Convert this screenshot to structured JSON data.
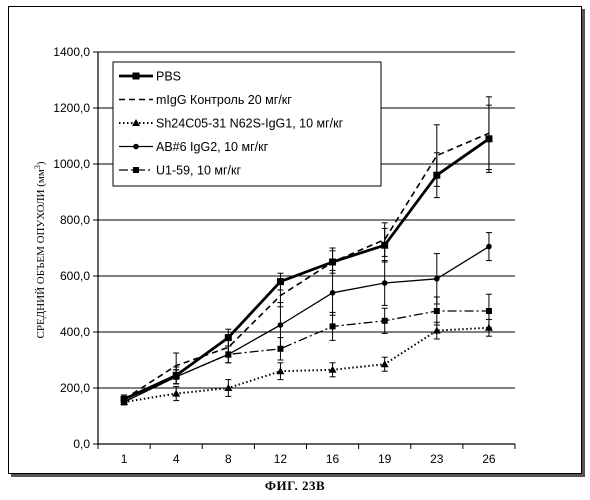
{
  "caption": "ФИГ. 23В",
  "chart_data": {
    "type": "line",
    "ylabel": "СРЕДНИЙ ОБЪЕМ ОПУХОЛИ (мм³)",
    "ylabel_main": "СРЕДНИЙ ОБЪЕМ ОПУХОЛИ (мм",
    "ylabel_sup": "3",
    "ylabel_tail": ")",
    "xlabel": "",
    "categories": [
      "1",
      "4",
      "8",
      "12",
      "16",
      "19",
      "23",
      "26"
    ],
    "ylim": [
      0,
      1400
    ],
    "yticks": [
      "0,0",
      "200,0",
      "400,0",
      "600,0",
      "800,0",
      "1000,0",
      "1200,0",
      "1400,0"
    ],
    "ytick_values": [
      0,
      200,
      400,
      600,
      800,
      1000,
      1200,
      1400
    ],
    "grid": "horizontal",
    "legend_position": "top-left",
    "series": [
      {
        "name": "PBS",
        "values": [
          160,
          245,
          380,
          580,
          650,
          710,
          960,
          1090
        ],
        "errors": [
          15,
          30,
          30,
          30,
          50,
          60,
          80,
          120
        ],
        "line_style": "solid-thick",
        "marker": "square"
      },
      {
        "name": "mIgG Контроль 20 мг/кг",
        "values": [
          160,
          280,
          345,
          530,
          650,
          730,
          1030,
          1110
        ],
        "errors": [
          15,
          45,
          35,
          40,
          40,
          60,
          110,
          130
        ],
        "line_style": "dashed",
        "marker": "none"
      },
      {
        "name": "Sh24C05-31 N62S-IgG1, 10 мг/кг",
        "values": [
          150,
          180,
          200,
          260,
          265,
          285,
          405,
          415
        ],
        "errors": [
          10,
          25,
          30,
          30,
          25,
          25,
          30,
          30
        ],
        "line_style": "dotted",
        "marker": "triangle"
      },
      {
        "name": "AB#6 IgG2, 10 мг/кг",
        "values": [
          150,
          240,
          320,
          425,
          540,
          575,
          590,
          705
        ],
        "errors": [
          10,
          25,
          30,
          80,
          80,
          80,
          90,
          50
        ],
        "line_style": "solid-thin",
        "marker": "circle"
      },
      {
        "name": "U1-59, 10 мг/кг",
        "values": [
          150,
          240,
          320,
          340,
          420,
          440,
          475,
          475
        ],
        "errors": [
          10,
          25,
          30,
          40,
          50,
          45,
          50,
          60
        ],
        "line_style": "dash-dot",
        "marker": "square"
      }
    ]
  }
}
